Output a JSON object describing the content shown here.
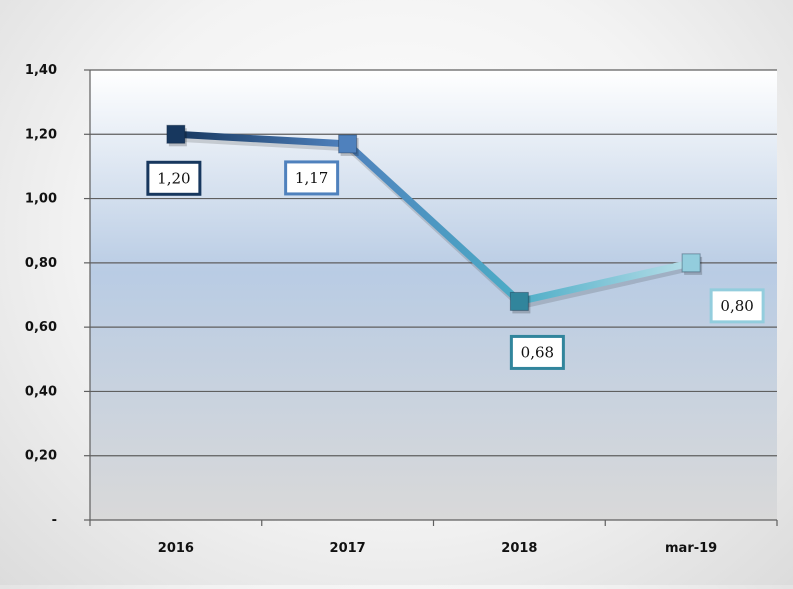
{
  "chart_data": {
    "type": "line",
    "categories": [
      "2016",
      "2017",
      "2018",
      "mar-19"
    ],
    "values": [
      1.2,
      1.17,
      0.68,
      0.8
    ],
    "data_labels": [
      "1,20",
      "1,17",
      "0,68",
      "0,80"
    ],
    "y_tick_labels": [
      "-",
      "0,20",
      "0,40",
      "0,60",
      "0,80",
      "1,00",
      "1,20",
      "1,40"
    ],
    "ylim": [
      0,
      1.4
    ],
    "y_step": 0.2,
    "grid": true,
    "legend": "none",
    "title": "",
    "xlabel": "",
    "ylabel": "",
    "point_colors": [
      "#17375e",
      "#4f81bd",
      "#31859c",
      "#93cddd"
    ],
    "line_gradient": [
      "#17375e",
      "#4f81bd",
      "#4bacc6",
      "#b7dee8"
    ],
    "plot_gradient": [
      "#ffffff",
      "#b9cce4",
      "#d9d9d9"
    ]
  }
}
